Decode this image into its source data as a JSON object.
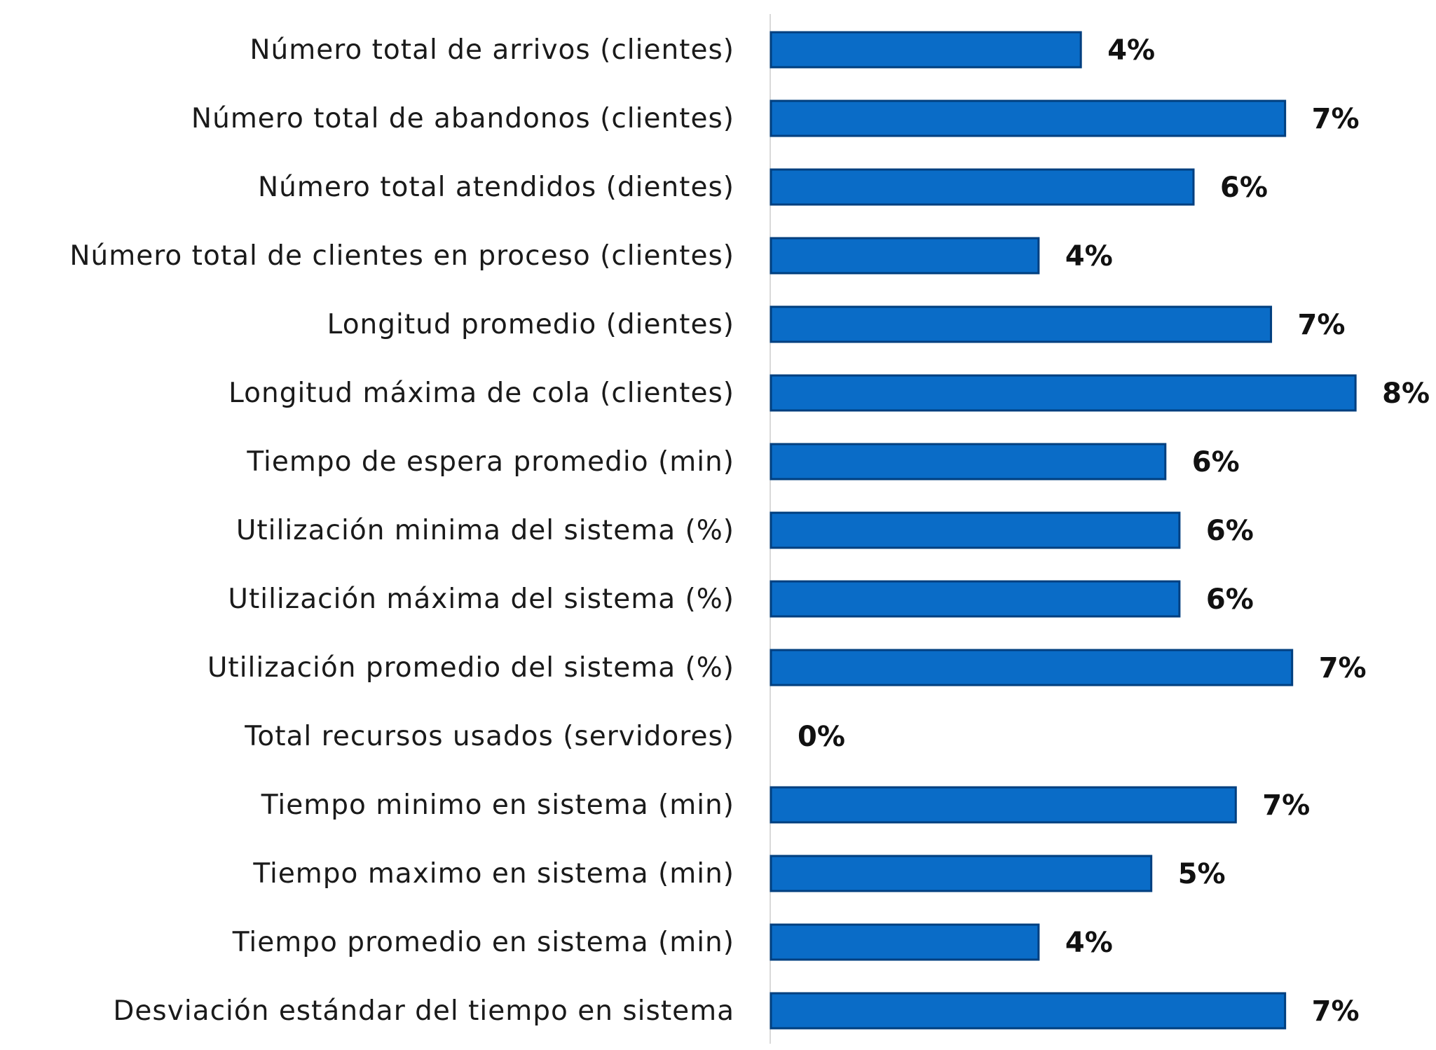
{
  "chart_data": {
    "type": "bar",
    "orientation": "horizontal",
    "title": "",
    "xlabel": "",
    "ylabel": "",
    "xlim": [
      0,
      8.2
    ],
    "grid": false,
    "legend": "none",
    "bar_color": "#0a6cc7",
    "categories": [
      "Número total de arrivos (clientes)",
      "Número total de abandonos (clientes)",
      "Número total atendidos (dientes)",
      "Número total de clientes en proceso (clientes)",
      "Longitud promedio (dientes)",
      "Longitud máxima de cola (clientes)",
      "Tiempo de espera promedio (min)",
      "Utilización minima del sistema (%)",
      "Utilización máxima del sistema (%)",
      "Utilización promedio del sistema (%)",
      "Total recursos usados (servidores)",
      "Tiempo minimo en sistema (min)",
      "Tiempo maximo en sistema (min)",
      "Tiempo promedio en sistema (min)",
      "Desviación estándar del tiempo en sistema"
    ],
    "values": [
      4.4,
      7.3,
      6.0,
      3.8,
      7.1,
      8.3,
      5.6,
      5.8,
      5.8,
      7.4,
      0.0,
      6.6,
      5.4,
      3.8,
      7.3
    ],
    "value_labels": [
      "4%",
      "7%",
      "6%",
      "4%",
      "7%",
      "8%",
      "6%",
      "6%",
      "6%",
      "7%",
      "0%",
      "7%",
      "5%",
      "4%",
      "7%"
    ]
  }
}
